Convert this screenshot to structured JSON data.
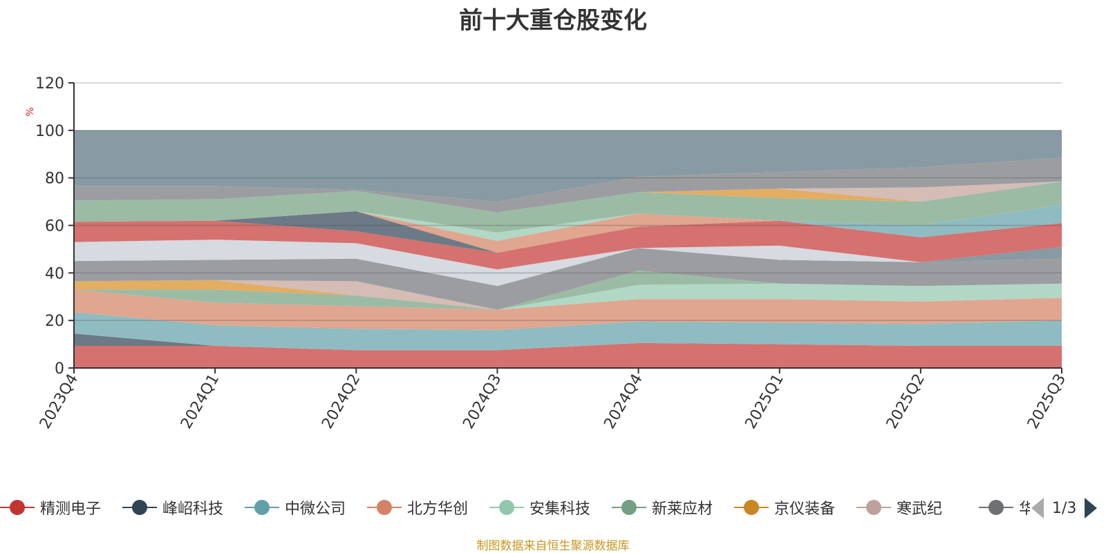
{
  "chart_data": {
    "type": "area",
    "title": "前十大重仓股变化",
    "ylabel": "%",
    "ylim": [
      0,
      120
    ],
    "yticks": [
      0,
      20,
      40,
      60,
      80,
      100,
      120
    ],
    "grid": true,
    "legend_position": "bottom",
    "x": [
      "2023Q4",
      "2024Q1",
      "2024Q2",
      "2024Q3",
      "2024Q4",
      "2025Q1",
      "2025Q2",
      "2025Q3"
    ],
    "layers": [
      {
        "color": "#d5716e",
        "bounds": [
          9.3,
          9.3,
          7.5,
          7.5,
          10.5,
          10,
          9.3,
          9.3
        ]
      },
      {
        "color": "#6b7a86",
        "bounds": [
          14.5,
          9.3,
          7.5,
          7.5,
          10.5,
          10,
          9.3,
          9.3
        ]
      },
      {
        "color": "#8fbcc2",
        "bounds": [
          23.5,
          18,
          16.5,
          16,
          19.5,
          19,
          18.5,
          20
        ]
      },
      {
        "color": "#e0a690",
        "bounds": [
          33,
          27.5,
          26,
          24.5,
          29,
          29,
          28,
          29.5
        ]
      },
      {
        "color": "#b0d8c5",
        "bounds": [
          33,
          27.5,
          26,
          24.5,
          35,
          35.5,
          34.5,
          35.5
        ]
      },
      {
        "color": "#9bbba5",
        "bounds": [
          33,
          33,
          30.5,
          24.5,
          41,
          35.5,
          34.5,
          35.5
        ]
      },
      {
        "color": "#e3ad62",
        "bounds": [
          36.5,
          37,
          30.5,
          24.5,
          41,
          35.5,
          34.5,
          35.5
        ]
      },
      {
        "color": "#d5bcb5",
        "bounds": [
          36.5,
          37,
          36.5,
          24.5,
          41,
          35.5,
          34.5,
          35.5
        ]
      },
      {
        "color": "#9c9da0",
        "bounds": [
          45,
          45.5,
          46,
          34.5,
          50.5,
          45.5,
          44.5,
          46
        ]
      },
      {
        "color": "#889aa3",
        "bounds": [
          45,
          45.5,
          46,
          34.5,
          50.5,
          45.5,
          44.5,
          51
        ]
      },
      {
        "color": "#d6dae1",
        "bounds": [
          53,
          54,
          52.5,
          41.5,
          50.5,
          51.5,
          44.5,
          51
        ]
      },
      {
        "color": "#d5716e",
        "bounds": [
          61.5,
          62,
          57.5,
          48.5,
          59.5,
          62,
          55,
          61
        ]
      },
      {
        "color": "#8fbcc2",
        "bounds": [
          61.5,
          62,
          57.5,
          48.5,
          59.5,
          62,
          60,
          68.5
        ]
      },
      {
        "color": "#6b7a86",
        "bounds": [
          61.5,
          62,
          66,
          48.5,
          59.5,
          62,
          60,
          68.5
        ]
      },
      {
        "color": "#e0a690",
        "bounds": [
          61.5,
          62,
          66,
          53.5,
          65,
          62,
          60,
          68.5
        ]
      },
      {
        "color": "#b0d8c5",
        "bounds": [
          61.5,
          62,
          66,
          57,
          65,
          62,
          60,
          68.5
        ]
      },
      {
        "color": "#9bbba5",
        "bounds": [
          70.5,
          71,
          74.5,
          65.5,
          74,
          71.5,
          70,
          78.5
        ]
      },
      {
        "color": "#e3ad62",
        "bounds": [
          70.5,
          71,
          74.5,
          65.5,
          74,
          75.5,
          70,
          78.5
        ]
      },
      {
        "color": "#d5bcb5",
        "bounds": [
          70.5,
          71,
          74.5,
          65.5,
          74,
          75.5,
          76,
          78.5
        ]
      },
      {
        "color": "#9c9da0",
        "bounds": [
          76.5,
          76.5,
          75,
          70,
          80.5,
          82.5,
          84.5,
          88.5
        ]
      },
      {
        "color": "#889aa3",
        "bounds": [
          100,
          100,
          100,
          100,
          100,
          100,
          100,
          100
        ]
      }
    ]
  },
  "legend": {
    "items": [
      {
        "name": "精测电子",
        "color": "#c23531"
      },
      {
        "name": "峰岹科技",
        "color": "#2f4554"
      },
      {
        "name": "中微公司",
        "color": "#61a0a8"
      },
      {
        "name": "北方华创",
        "color": "#d48265"
      },
      {
        "name": "安集科技",
        "color": "#91c7ae"
      },
      {
        "name": "新莱应材",
        "color": "#749f83"
      },
      {
        "name": "京仪装备",
        "color": "#ca8622"
      },
      {
        "name": "寒武纪",
        "color": "#bda29a"
      },
      {
        "name": "华海清科",
        "color": "#6e7074"
      }
    ],
    "page": "1/3"
  },
  "source": "制图数据来自恒生聚源数据库"
}
